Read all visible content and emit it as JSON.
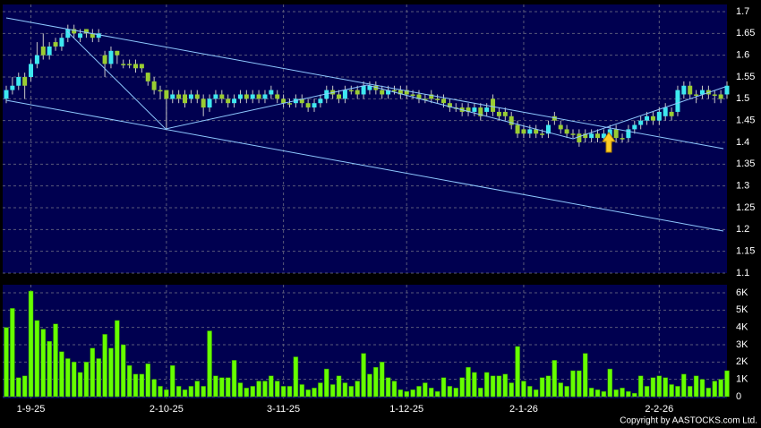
{
  "chart_data": [
    {
      "type": "candlestick",
      "up_color": "#3ee8f0",
      "down_color": "#9acd32",
      "ylim": [
        1.1,
        1.7
      ],
      "yticks": [
        1.1,
        1.15,
        1.2,
        1.25,
        1.3,
        1.35,
        1.4,
        1.45,
        1.5,
        1.55,
        1.6,
        1.65,
        1.7
      ],
      "grid": true,
      "open": [
        1.5,
        1.52,
        1.53,
        1.55,
        1.55,
        1.58,
        1.62,
        1.6,
        1.63,
        1.62,
        1.64,
        1.66,
        1.64,
        1.66,
        1.65,
        1.64,
        1.6,
        1.58,
        1.61,
        1.58,
        1.58,
        1.58,
        1.58,
        1.56,
        1.54,
        1.52,
        1.52,
        1.5,
        1.51,
        1.51,
        1.5,
        1.51,
        1.5,
        1.48,
        1.5,
        1.51,
        1.5,
        1.49,
        1.5,
        1.51,
        1.5,
        1.51,
        1.5,
        1.51,
        1.51,
        1.5,
        1.49,
        1.49,
        1.5,
        1.49,
        1.48,
        1.49,
        1.5,
        1.52,
        1.51,
        1.5,
        1.52,
        1.52,
        1.51,
        1.52,
        1.53,
        1.52,
        1.51,
        1.52,
        1.52,
        1.52,
        1.51,
        1.51,
        1.5,
        1.51,
        1.5,
        1.5,
        1.49,
        1.48,
        1.48,
        1.48,
        1.47,
        1.48,
        1.47,
        1.5,
        1.47,
        1.47,
        1.46,
        1.44,
        1.43,
        1.42,
        1.43,
        1.42,
        1.42,
        1.46,
        1.44,
        1.43,
        1.42,
        1.42,
        1.42,
        1.41,
        1.42,
        1.41,
        1.41,
        1.43,
        1.41,
        1.41,
        1.43,
        1.44,
        1.45,
        1.46,
        1.45,
        1.46,
        1.47,
        1.47,
        1.51,
        1.53,
        1.51,
        1.51,
        1.52,
        1.51,
        1.51,
        1.51
      ],
      "high": [
        1.53,
        1.55,
        1.56,
        1.56,
        1.59,
        1.63,
        1.65,
        1.63,
        1.64,
        1.65,
        1.67,
        1.67,
        1.66,
        1.66,
        1.66,
        1.66,
        1.61,
        1.62,
        1.61,
        1.59,
        1.59,
        1.59,
        1.58,
        1.56,
        1.55,
        1.53,
        1.52,
        1.52,
        1.52,
        1.52,
        1.52,
        1.52,
        1.51,
        1.51,
        1.52,
        1.52,
        1.51,
        1.51,
        1.52,
        1.52,
        1.52,
        1.52,
        1.52,
        1.53,
        1.52,
        1.51,
        1.5,
        1.51,
        1.51,
        1.5,
        1.5,
        1.51,
        1.53,
        1.53,
        1.52,
        1.53,
        1.53,
        1.53,
        1.54,
        1.54,
        1.54,
        1.53,
        1.53,
        1.53,
        1.53,
        1.53,
        1.52,
        1.52,
        1.51,
        1.52,
        1.51,
        1.51,
        1.5,
        1.49,
        1.49,
        1.49,
        1.49,
        1.49,
        1.49,
        1.51,
        1.48,
        1.48,
        1.47,
        1.45,
        1.44,
        1.44,
        1.44,
        1.43,
        1.45,
        1.47,
        1.45,
        1.44,
        1.43,
        1.43,
        1.43,
        1.43,
        1.43,
        1.43,
        1.44,
        1.44,
        1.42,
        1.44,
        1.45,
        1.46,
        1.47,
        1.47,
        1.48,
        1.49,
        1.48,
        1.53,
        1.54,
        1.54,
        1.52,
        1.53,
        1.53,
        1.52,
        1.52,
        1.54
      ],
      "low": [
        1.49,
        1.51,
        1.52,
        1.5,
        1.54,
        1.57,
        1.59,
        1.59,
        1.61,
        1.61,
        1.63,
        1.64,
        1.63,
        1.64,
        1.63,
        1.63,
        1.55,
        1.57,
        1.58,
        1.57,
        1.57,
        1.56,
        1.56,
        1.53,
        1.51,
        1.5,
        1.43,
        1.49,
        1.49,
        1.48,
        1.49,
        1.49,
        1.46,
        1.47,
        1.49,
        1.49,
        1.48,
        1.48,
        1.49,
        1.49,
        1.49,
        1.49,
        1.49,
        1.5,
        1.49,
        1.48,
        1.48,
        1.48,
        1.48,
        1.47,
        1.47,
        1.48,
        1.49,
        1.5,
        1.49,
        1.49,
        1.51,
        1.5,
        1.5,
        1.51,
        1.51,
        1.5,
        1.5,
        1.51,
        1.5,
        1.5,
        1.5,
        1.49,
        1.49,
        1.49,
        1.49,
        1.48,
        1.47,
        1.47,
        1.46,
        1.46,
        1.46,
        1.45,
        1.46,
        1.46,
        1.45,
        1.45,
        1.43,
        1.41,
        1.41,
        1.41,
        1.41,
        1.41,
        1.41,
        1.44,
        1.42,
        1.41,
        1.41,
        1.39,
        1.4,
        1.4,
        1.4,
        1.4,
        1.4,
        1.4,
        1.4,
        1.4,
        1.42,
        1.43,
        1.44,
        1.44,
        1.44,
        1.45,
        1.45,
        1.46,
        1.5,
        1.5,
        1.49,
        1.5,
        1.5,
        1.49,
        1.49,
        1.5
      ],
      "close": [
        1.52,
        1.53,
        1.55,
        1.53,
        1.58,
        1.6,
        1.6,
        1.62,
        1.62,
        1.64,
        1.66,
        1.65,
        1.65,
        1.65,
        1.64,
        1.65,
        1.58,
        1.61,
        1.6,
        1.58,
        1.58,
        1.57,
        1.57,
        1.54,
        1.52,
        1.52,
        1.5,
        1.51,
        1.5,
        1.49,
        1.51,
        1.5,
        1.48,
        1.5,
        1.51,
        1.5,
        1.49,
        1.5,
        1.51,
        1.5,
        1.51,
        1.5,
        1.51,
        1.52,
        1.5,
        1.49,
        1.49,
        1.5,
        1.49,
        1.48,
        1.49,
        1.5,
        1.52,
        1.51,
        1.5,
        1.52,
        1.52,
        1.51,
        1.53,
        1.53,
        1.52,
        1.51,
        1.52,
        1.52,
        1.51,
        1.51,
        1.51,
        1.5,
        1.5,
        1.5,
        1.5,
        1.49,
        1.48,
        1.48,
        1.47,
        1.47,
        1.48,
        1.46,
        1.48,
        1.47,
        1.46,
        1.46,
        1.44,
        1.42,
        1.42,
        1.43,
        1.42,
        1.42,
        1.44,
        1.45,
        1.43,
        1.42,
        1.42,
        1.4,
        1.41,
        1.42,
        1.41,
        1.42,
        1.43,
        1.41,
        1.41,
        1.43,
        1.44,
        1.45,
        1.46,
        1.45,
        1.47,
        1.48,
        1.46,
        1.52,
        1.53,
        1.51,
        1.51,
        1.52,
        1.51,
        1.51,
        1.5,
        1.53
      ]
    },
    {
      "type": "bar",
      "color": "#66ff00",
      "ylim": [
        0,
        6000
      ],
      "yticks": [
        0,
        {
          "value": 1000,
          "label": "1K"
        },
        {
          "value": 2000,
          "label": "2K"
        },
        {
          "value": 3000,
          "label": "3K"
        },
        {
          "value": 4000,
          "label": "4K"
        },
        {
          "value": 5000,
          "label": "5K"
        },
        {
          "value": 6000,
          "label": "6K"
        }
      ],
      "grid": true,
      "categories": [
        null,
        null,
        null,
        null,
        "1-9-25",
        null,
        null,
        null,
        null,
        null,
        null,
        null,
        null,
        null,
        null,
        null,
        null,
        null,
        null,
        null,
        null,
        null,
        null,
        null,
        null,
        null,
        "2-10-25",
        null,
        null,
        null,
        null,
        null,
        null,
        null,
        null,
        null,
        null,
        null,
        null,
        null,
        null,
        null,
        null,
        null,
        null,
        "3-11-25",
        null,
        null,
        null,
        null,
        null,
        null,
        null,
        null,
        null,
        null,
        null,
        null,
        null,
        null,
        null,
        null,
        null,
        null,
        null,
        "1-12-25",
        null,
        null,
        null,
        null,
        null,
        null,
        null,
        null,
        null,
        null,
        null,
        null,
        null,
        null,
        null,
        null,
        null,
        null,
        "2-1-26",
        null,
        null,
        null,
        null,
        null,
        null,
        null,
        null,
        null,
        null,
        null,
        null,
        null,
        null,
        null,
        null,
        null,
        null,
        null,
        null,
        null,
        "2-2-26",
        null,
        null,
        null,
        null,
        null,
        null,
        null,
        null,
        null,
        null,
        null
      ],
      "values": [
        4000,
        5100,
        1100,
        1200,
        6100,
        4400,
        3900,
        3200,
        4200,
        2600,
        2200,
        2000,
        1400,
        2000,
        2800,
        2200,
        3600,
        2800,
        4400,
        3000,
        1800,
        1300,
        1300,
        1900,
        1000,
        600,
        400,
        1800,
        600,
        400,
        600,
        900,
        600,
        3800,
        1200,
        1100,
        1100,
        2100,
        800,
        500,
        600,
        900,
        900,
        1200,
        900,
        600,
        600,
        2300,
        700,
        400,
        500,
        800,
        1600,
        700,
        1200,
        800,
        600,
        900,
        2500,
        1300,
        1700,
        2000,
        1100,
        900,
        400,
        300,
        400,
        600,
        800,
        500,
        300,
        1100,
        600,
        500,
        1100,
        1700,
        1400,
        500,
        1400,
        1200,
        1200,
        1300,
        800,
        2900,
        900,
        600,
        400,
        1100,
        1200,
        2100,
        800,
        600,
        1500,
        1500,
        2500,
        500,
        400,
        300,
        1600,
        400,
        500,
        300,
        200,
        1200,
        600,
        1100,
        1200,
        1100,
        700,
        600,
        1300,
        600,
        1200,
        1000,
        500,
        900,
        1000,
        1500
      ]
    }
  ],
  "copyright": "Copyright by AASTOCKS.com Ltd."
}
